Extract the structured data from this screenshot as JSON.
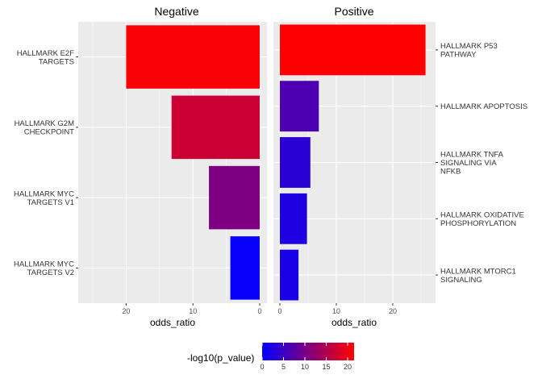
{
  "chart_data": {
    "type": "bar",
    "orientation": "horizontal",
    "x_label": "odds_ratio",
    "facets": [
      {
        "title": "Negative",
        "x_reversed": true,
        "xlim": [
          0,
          27
        ],
        "x_ticks": [
          20,
          10,
          0
        ],
        "y_label_side": "left",
        "categories": [
          "HALLMARK E2F\nTARGETS",
          "HALLMARK G2M\nCHECKPOINT",
          "HALLMARK MYC\nTARGETS V1",
          "HALLMARK MYC\nTARGETS V2"
        ],
        "values": [
          20.0,
          13.2,
          7.6,
          4.4
        ],
        "neg_log10_p_value": [
          21.0,
          17.0,
          10.5,
          0.5
        ]
      },
      {
        "title": "Positive",
        "x_reversed": false,
        "xlim": [
          0,
          27
        ],
        "x_ticks": [
          0,
          10,
          20
        ],
        "y_label_side": "right",
        "categories": [
          "HALLMARK P53\nPATHWAY",
          "HALLMARK APOPTOSIS",
          "HALLMARK TNFA\nSIGNALING VIA\nNFKB",
          "HALLMARK OXIDATIVE\nPHOSPHORYLATION",
          "HALLMARK MTORC1\nSIGNALING"
        ],
        "values": [
          25.8,
          6.9,
          5.4,
          4.8,
          3.3
        ],
        "neg_log10_p_value": [
          21.5,
          6.5,
          3.5,
          2.5,
          2.0
        ]
      }
    ],
    "legend": {
      "title": "-log10(p_value)",
      "position": "bottom",
      "range": [
        0,
        21.5
      ],
      "ticks": [
        0,
        5,
        10,
        15,
        20
      ],
      "low_color": "#0000ff",
      "high_color": "#ff0000"
    },
    "panel_background": "#ebebeb",
    "grid": true
  }
}
